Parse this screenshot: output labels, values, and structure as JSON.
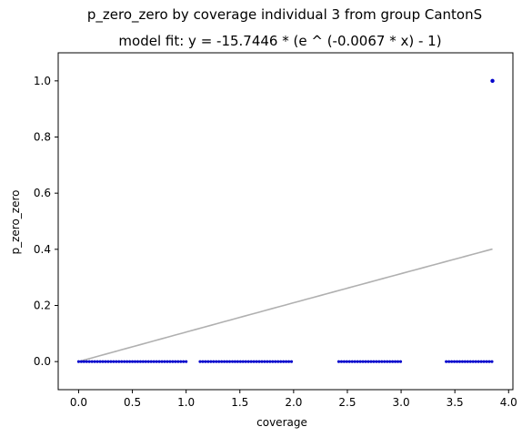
{
  "chart_data": {
    "type": "scatter",
    "title": "p_zero_zero by coverage individual 3 from group CantonS",
    "subtitle": "model fit: y = -15.7446 * (e ^ (-0.0067 * x) - 1)",
    "xlabel": "coverage",
    "ylabel": "p_zero_zero",
    "xlim": [
      -0.19,
      4.04
    ],
    "ylim": [
      -0.1,
      1.1
    ],
    "xticks": [
      0.0,
      0.5,
      1.0,
      1.5,
      2.0,
      2.5,
      3.0,
      3.5,
      4.0
    ],
    "xtick_labels": [
      "0.0",
      "0.5",
      "1.0",
      "1.5",
      "2.0",
      "2.5",
      "3.0",
      "3.5",
      "4.0"
    ],
    "yticks": [
      0.0,
      0.2,
      0.4,
      0.6,
      0.8,
      1.0
    ],
    "ytick_labels": [
      "0.0",
      "0.2",
      "0.4",
      "0.6",
      "0.8",
      "1.0"
    ],
    "grid": false,
    "legend": "none",
    "point_color": "#0000cc",
    "fit_color": "#b0b0b0",
    "fit_model": {
      "a": -15.7446,
      "b": -0.0067,
      "x_range": [
        0.0,
        3.85
      ]
    },
    "points_zero_ranges": [
      {
        "from": 0.0,
        "to": 1.0,
        "step": 0.025
      },
      {
        "from": 1.13,
        "to": 2.0,
        "step": 0.025
      },
      {
        "from": 2.42,
        "to": 3.0,
        "step": 0.025
      },
      {
        "from": 3.42,
        "to": 3.85,
        "step": 0.025
      }
    ],
    "points_one": [
      3.85
    ]
  }
}
